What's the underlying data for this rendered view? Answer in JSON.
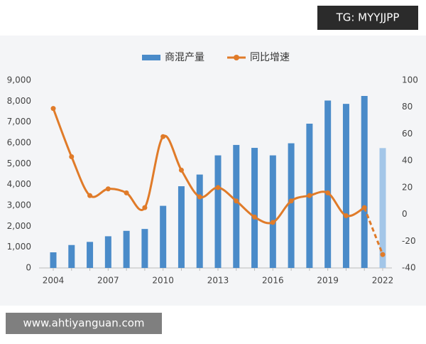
{
  "chart_data": {
    "type": "bar-line",
    "categories": [
      "2004",
      null,
      null,
      "2007",
      null,
      null,
      "2010",
      null,
      null,
      "2013",
      null,
      null,
      "2016",
      null,
      null,
      "2019",
      null,
      null,
      "2022"
    ],
    "series": [
      {
        "name": "商混产量",
        "type": "bar",
        "color": "#4a8bc9",
        "last_color": "#a3c6e8",
        "values": [
          750,
          1100,
          1250,
          1520,
          1780,
          1870,
          2980,
          3920,
          4480,
          5400,
          5900,
          5760,
          5400,
          5980,
          6920,
          8030,
          7870,
          8250,
          5750
        ]
      },
      {
        "name": "同比增速",
        "type": "line",
        "axis": "y2",
        "color": "#e07b29",
        "dashed_last": true,
        "values": [
          79,
          43,
          14,
          19,
          16,
          5,
          58,
          33,
          13,
          20,
          10,
          -2,
          -6,
          10,
          14,
          16,
          -1,
          5,
          -30
        ]
      }
    ],
    "ylim": [
      0,
      9000
    ],
    "yticks": [
      0,
      {
        "value": 1000,
        "label": "1,000"
      },
      {
        "value": 2000,
        "label": "2,000"
      },
      {
        "value": 3000,
        "label": "3,000"
      },
      {
        "value": 4000,
        "label": "4,000"
      },
      {
        "value": 5000,
        "label": "5,000"
      },
      {
        "value": 6000,
        "label": "6,000"
      },
      {
        "value": 7000,
        "label": "7,000"
      },
      {
        "value": 8000,
        "label": "8,000"
      },
      {
        "value": 9000,
        "label": "9,000"
      }
    ],
    "y2lim": [
      -40,
      100
    ],
    "y2ticks": [
      -40,
      -20,
      0,
      20,
      40,
      60,
      80,
      100
    ],
    "grid": false
  },
  "watermarks": [
    "TG: MYYJJPP",
    "www.ahtiyanguan.com"
  ]
}
